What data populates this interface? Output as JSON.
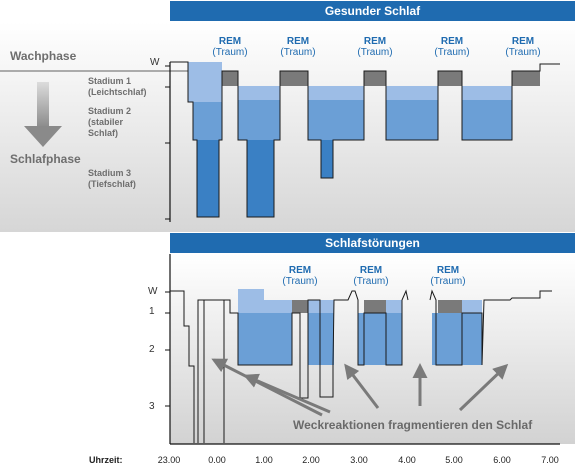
{
  "top_panel": {
    "title": "Gesunder Schlaf",
    "wake_label": "Wachphase",
    "sleep_label": "Schlafphase",
    "ytick_w": "W",
    "stage1": [
      "Stadium 1",
      "(Leichtschlaf)"
    ],
    "stage2": [
      "Stadium 2",
      "(stabiler",
      "Schlaf)"
    ],
    "stage3": [
      "Stadium 3",
      "(Tiefschlaf)"
    ],
    "rem": [
      {
        "title": "REM",
        "sub": "(Traum)"
      },
      {
        "title": "REM",
        "sub": "(Traum)"
      },
      {
        "title": "REM",
        "sub": "(Traum)"
      },
      {
        "title": "REM",
        "sub": "(Traum)"
      },
      {
        "title": "REM",
        "sub": "(Traum)"
      }
    ]
  },
  "bottom_panel": {
    "title": "Schlafstörungen",
    "yticks": [
      "W",
      "1",
      "2",
      "3"
    ],
    "rem": [
      {
        "title": "REM",
        "sub": "(Traum)"
      },
      {
        "title": "REM",
        "sub": "(Traum)"
      },
      {
        "title": "REM",
        "sub": "(Traum)"
      }
    ],
    "caption": "Weckreaktionen fragmentieren den Schlaf"
  },
  "x_axis": {
    "label": "Uhrzeit:",
    "ticks": [
      "23.00",
      "0.00",
      "1.00",
      "2.00",
      "3.00",
      "4.00",
      "5.00",
      "6.00",
      "7.00"
    ]
  },
  "colors": {
    "banner": "#1f6bb0",
    "rem_text": "#1f6bb0",
    "stage_light": "#9dbde6",
    "stage_mid": "#6b9fd6",
    "stage_deep": "#3a80c4",
    "rem_bar": "#7a7a7a",
    "background_gradient_bottom": "#d4d4d4"
  }
}
